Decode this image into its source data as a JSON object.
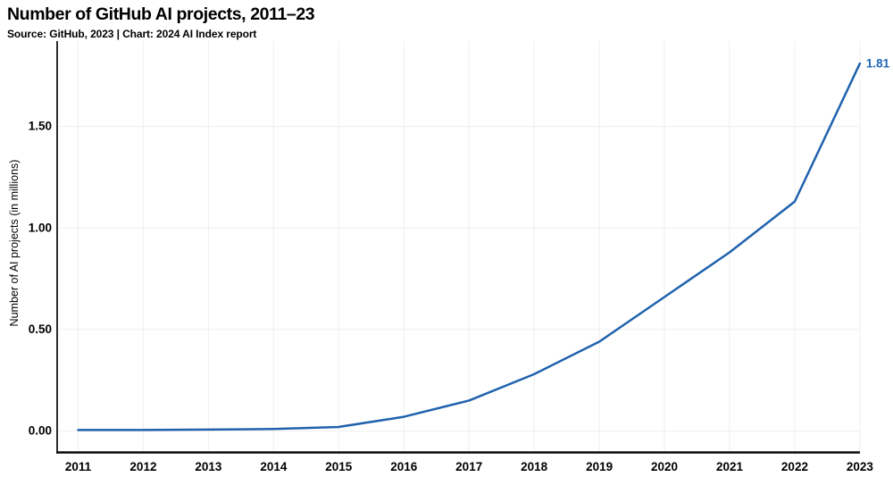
{
  "header": {
    "title": "Number of GitHub AI projects, 2011–23",
    "subtitle": "Source: GitHub, 2023 | Chart: 2024 AI Index report"
  },
  "chart_data": {
    "type": "line",
    "title": "Number of GitHub AI projects, 2011–23",
    "xlabel": "",
    "ylabel": "Number of AI projects (in millions)",
    "x": [
      2011,
      2012,
      2013,
      2014,
      2015,
      2016,
      2017,
      2018,
      2019,
      2020,
      2021,
      2022,
      2023
    ],
    "series": [
      {
        "name": "Number of AI projects (in millions)",
        "values": [
          0.005,
          0.005,
          0.007,
          0.01,
          0.02,
          0.07,
          0.15,
          0.28,
          0.44,
          0.66,
          0.88,
          1.13,
          1.81
        ]
      }
    ],
    "end_label": "1.81",
    "ylim": [
      0,
      1.9
    ],
    "y_ticks": [
      "0.00",
      "0.50",
      "1.00",
      "1.50"
    ],
    "y_tick_values": [
      0,
      0.5,
      1.0,
      1.5
    ],
    "grid": true,
    "legend_position": "none",
    "colors": {
      "line": "#2062ae",
      "end_label": "#2166b5",
      "grid": "#efefef",
      "axis": "#0a0a0a",
      "tick_text": "#000000"
    }
  }
}
